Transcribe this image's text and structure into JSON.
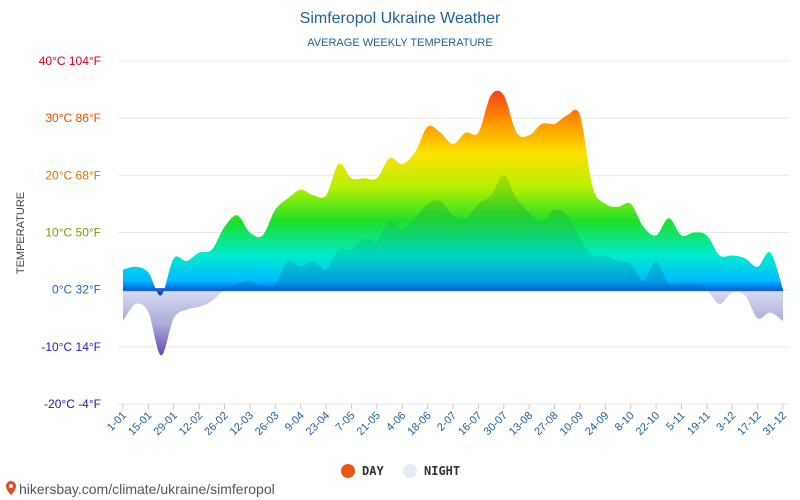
{
  "chart_data": {
    "type": "area",
    "title": "Simferopol Ukraine Weather",
    "subtitle": "AVERAGE WEEKLY TEMPERATURE",
    "ylabel": "TEMPERATURE",
    "ylim": [
      -20,
      40
    ],
    "yticks": [
      {
        "value": 40,
        "label": "40°C 104°F"
      },
      {
        "value": 30,
        "label": "30°C 86°F"
      },
      {
        "value": 20,
        "label": "20°C 68°F"
      },
      {
        "value": 10,
        "label": "10°C 50°F"
      },
      {
        "value": 0,
        "label": "0°C 32°F"
      },
      {
        "value": -10,
        "label": "-10°C 14°F"
      },
      {
        "value": -20,
        "label": "-20°C -4°F"
      }
    ],
    "x": [
      "1-01",
      "8-01",
      "15-01",
      "22-01",
      "29-01",
      "5-02",
      "12-02",
      "19-02",
      "26-02",
      "5-03",
      "12-03",
      "19-03",
      "26-03",
      "2-04",
      "9-04",
      "16-04",
      "23-04",
      "30-04",
      "7-05",
      "14-05",
      "21-05",
      "28-05",
      "4-06",
      "11-06",
      "18-06",
      "25-06",
      "2-07",
      "9-07",
      "16-07",
      "23-07",
      "30-07",
      "6-08",
      "13-08",
      "20-08",
      "27-08",
      "3-09",
      "10-09",
      "17-09",
      "24-09",
      "1-10",
      "8-10",
      "15-10",
      "22-10",
      "29-10",
      "5-11",
      "12-11",
      "19-11",
      "26-11",
      "3-12",
      "10-12",
      "17-12",
      "24-12",
      "31-12"
    ],
    "xtick_labels": [
      "1-01",
      "15-01",
      "29-01",
      "12-02",
      "26-02",
      "12-03",
      "26-03",
      "9-04",
      "23-04",
      "7-05",
      "21-05",
      "4-06",
      "18-06",
      "2-07",
      "16-07",
      "30-07",
      "13-08",
      "27-08",
      "10-09",
      "24-09",
      "8-10",
      "22-10",
      "5-11",
      "19-11",
      "3-12",
      "17-12",
      "31-12"
    ],
    "grid": true,
    "legend_position": "bottom",
    "series": [
      {
        "name": "DAY",
        "color": "#ee5511",
        "values": [
          3.5,
          4,
          3,
          -1,
          5.5,
          5,
          6.5,
          7,
          11,
          13,
          10,
          9.5,
          14,
          16,
          17.5,
          16.5,
          16.5,
          22,
          19.5,
          19.5,
          19.5,
          23,
          22,
          24,
          28.5,
          27.5,
          25.5,
          27.5,
          27.5,
          34,
          34,
          27.5,
          27,
          29,
          29,
          30.5,
          30.5,
          18,
          15,
          14.5,
          15,
          11,
          9.5,
          12.5,
          9.5,
          10,
          9.5,
          6,
          6,
          5.5,
          4,
          6.5,
          0
        ]
      },
      {
        "name": "NIGHT",
        "color": "#e6eaf4",
        "values": [
          -5.5,
          -2.5,
          -4,
          -11.5,
          -5,
          -3.5,
          -3,
          -2,
          0,
          1,
          1.5,
          0.5,
          1,
          5,
          4,
          5,
          3.5,
          7,
          7,
          9,
          8.5,
          12,
          10.5,
          12.5,
          15,
          15.5,
          13,
          12.5,
          15,
          16.5,
          20,
          16,
          13.5,
          12,
          14,
          13,
          9,
          6,
          6,
          5,
          4.5,
          1.5,
          5,
          1,
          1,
          1,
          0,
          -2.5,
          -0.5,
          -1,
          -5,
          -4,
          -5.5
        ]
      }
    ]
  },
  "footer": {
    "text": "hikersbay.com/climate/ukraine/simferopol",
    "pin_color": "#e64a19"
  }
}
